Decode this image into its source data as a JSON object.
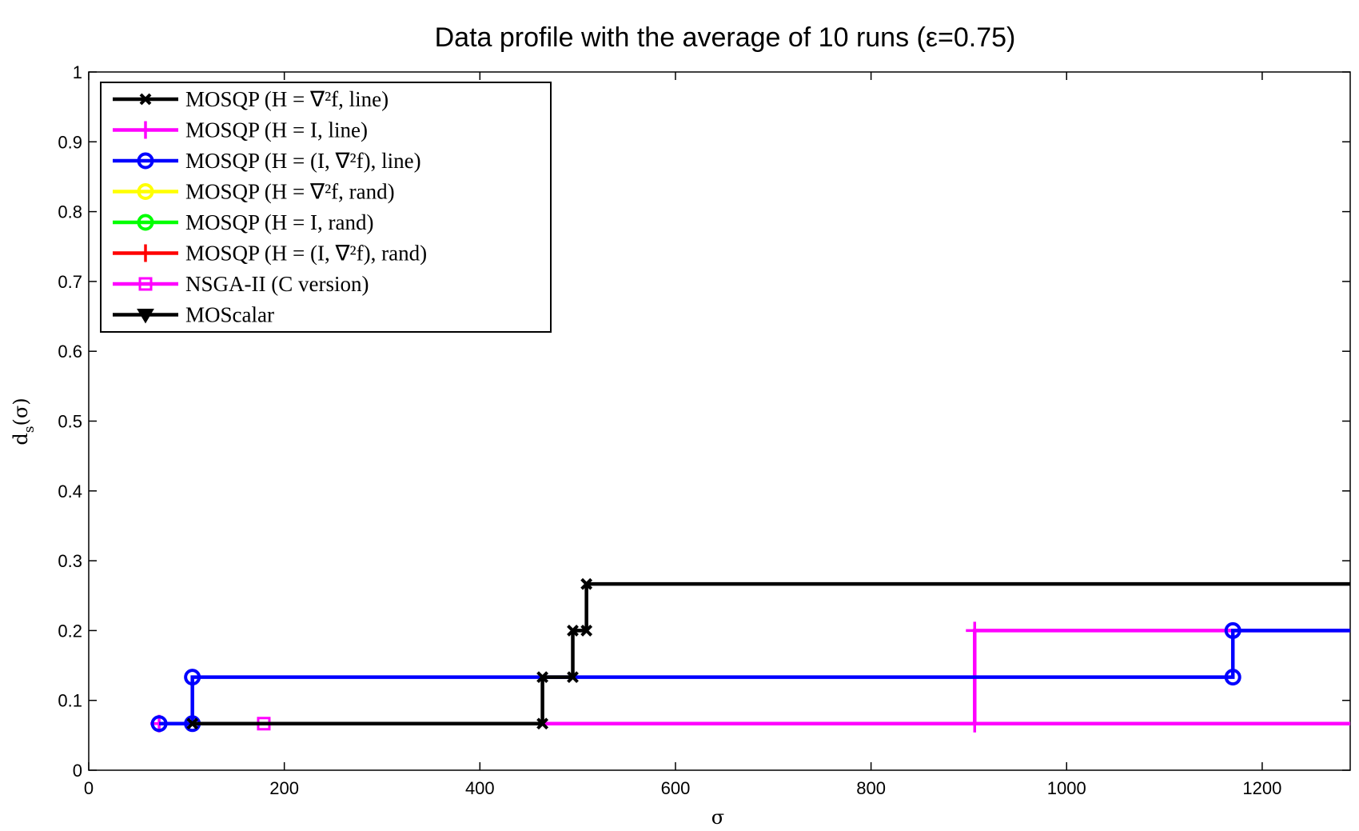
{
  "chart_data": {
    "type": "line",
    "title": "Data profile with the average of 10 runs (ε=0.75)",
    "xlabel": "σ",
    "ylabel": "d",
    "ylabel_sub": "s",
    "ylabel_suffix": "(σ)",
    "xlim": [
      0,
      1290
    ],
    "ylim": [
      0,
      1
    ],
    "xticks": [
      0,
      200,
      400,
      600,
      800,
      1000,
      1200
    ],
    "yticks": [
      0,
      0.1,
      0.2,
      0.3,
      0.4,
      0.5,
      0.6,
      0.7,
      0.8,
      0.9,
      1
    ],
    "xtick_labels": [
      "0",
      "200",
      "400",
      "600",
      "800",
      "1000",
      "1200"
    ],
    "ytick_labels": [
      "0",
      "0.1",
      "0.2",
      "0.3",
      "0.4",
      "0.5",
      "0.6",
      "0.7",
      "0.8",
      "0.9",
      "1"
    ],
    "grid": false,
    "legend_position": "top-left",
    "series": [
      {
        "name": "MOSQP (H = ∇²f, line)",
        "color": "#000000",
        "marker": "x",
        "x": [
          106,
          464,
          464,
          495,
          495,
          509,
          509,
          1290
        ],
        "y": [
          0.0667,
          0.0667,
          0.1333,
          0.1333,
          0.2,
          0.2,
          0.2667,
          0.2667
        ]
      },
      {
        "name": "MOSQP (H = I, line)",
        "color": "#ff00ff",
        "marker": "+",
        "x": [
          72,
          906,
          906,
          1290
        ],
        "y": [
          0.0667,
          0.0667,
          0.2,
          0.2
        ]
      },
      {
        "name": "MOSQP (H = (I, ∇²f), line)",
        "color": "#0000ff",
        "marker": "o",
        "x": [
          72,
          106,
          106,
          1170,
          1170,
          1290
        ],
        "y": [
          0.0667,
          0.0667,
          0.1333,
          0.1333,
          0.2,
          0.2
        ]
      },
      {
        "name": "MOSQP (H = ∇²f, rand)",
        "color": "#ffff00",
        "marker": "o",
        "x": [],
        "y": []
      },
      {
        "name": "MOSQP (H = I, rand)",
        "color": "#00ff00",
        "marker": "o",
        "x": [],
        "y": []
      },
      {
        "name": "MOSQP (H = (I, ∇²f), rand)",
        "color": "#ff0000",
        "marker": "+",
        "x": [],
        "y": []
      },
      {
        "name": "NSGA-II (C version)",
        "color": "#ff00ff",
        "marker": "s",
        "x": [
          179,
          1290
        ],
        "y": [
          0.0667,
          0.0667
        ]
      },
      {
        "name": "MOScalar",
        "color": "#000000",
        "marker": "v",
        "x": [],
        "y": []
      }
    ]
  }
}
